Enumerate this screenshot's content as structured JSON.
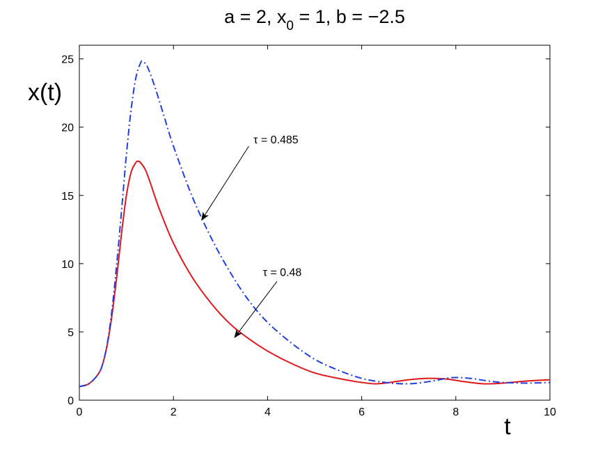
{
  "chart_data": {
    "type": "line",
    "title": "a = 2, x0 = 1, b = −2.5",
    "title_parts": {
      "pre": "a = 2, x",
      "sub": "0",
      "post": " = 1, b = −2.5"
    },
    "xlabel": "t",
    "ylabel": "x(t)",
    "xlim": [
      0,
      10
    ],
    "ylim": [
      0,
      26
    ],
    "xticks": [
      0,
      2,
      4,
      6,
      8,
      10
    ],
    "yticks": [
      0,
      5,
      10,
      15,
      20,
      25
    ],
    "xtick_labels": [
      "0",
      "2",
      "4",
      "6",
      "8",
      "10"
    ],
    "ytick_labels": [
      "0",
      "5",
      "10",
      "15",
      "20",
      "25"
    ],
    "grid": false,
    "series": [
      {
        "color": "#e0161b",
        "style": "solid",
        "x": [
          0,
          0.2,
          0.4,
          0.5,
          0.6,
          0.7,
          0.8,
          0.9,
          1.0,
          1.1,
          1.2,
          1.25,
          1.3,
          1.4,
          1.5,
          1.7,
          2.0,
          2.4,
          2.8,
          3.2,
          3.6,
          4.0,
          4.5,
          5.0,
          5.5,
          6.0,
          6.3,
          6.6,
          7.0,
          7.4,
          7.8,
          8.2,
          8.6,
          9.0,
          9.5,
          10.0
        ],
        "y": [
          1.0,
          1.2,
          1.9,
          2.7,
          4.2,
          6.4,
          9.2,
          12.3,
          15.0,
          16.7,
          17.4,
          17.5,
          17.4,
          16.9,
          16.0,
          14.0,
          11.5,
          9.0,
          7.1,
          5.6,
          4.5,
          3.6,
          2.7,
          2.0,
          1.6,
          1.3,
          1.2,
          1.3,
          1.5,
          1.6,
          1.55,
          1.35,
          1.2,
          1.25,
          1.4,
          1.5
        ]
      },
      {
        "color": "#1f3fe0",
        "style": "dashdot",
        "x": [
          0,
          0.2,
          0.4,
          0.5,
          0.6,
          0.7,
          0.8,
          0.9,
          1.0,
          1.1,
          1.2,
          1.3,
          1.35,
          1.45,
          1.6,
          1.8,
          2.0,
          2.4,
          2.8,
          3.2,
          3.6,
          4.0,
          4.5,
          5.0,
          5.5,
          6.0,
          6.5,
          7.0,
          7.5,
          7.9,
          8.3,
          8.7,
          9.0,
          9.5,
          10.0
        ],
        "y": [
          1.0,
          1.2,
          1.9,
          2.7,
          4.3,
          6.8,
          10.2,
          14.0,
          18.0,
          21.3,
          23.6,
          24.7,
          24.8,
          24.4,
          23.0,
          20.8,
          18.6,
          14.9,
          11.9,
          9.4,
          7.3,
          5.7,
          4.2,
          3.0,
          2.2,
          1.6,
          1.3,
          1.2,
          1.4,
          1.65,
          1.6,
          1.4,
          1.3,
          1.25,
          1.3
        ]
      }
    ],
    "annotations": [
      {
        "text": "τ = 0.485",
        "text_at": [
          3.7,
          18.8
        ],
        "arrow_from": [
          3.6,
          18.6
        ],
        "arrow_to": [
          2.6,
          13.2
        ]
      },
      {
        "text": "τ = 0.48",
        "text_at": [
          3.9,
          9.1
        ],
        "arrow_from": [
          4.2,
          8.7
        ],
        "arrow_to": [
          3.3,
          4.6
        ]
      }
    ]
  }
}
